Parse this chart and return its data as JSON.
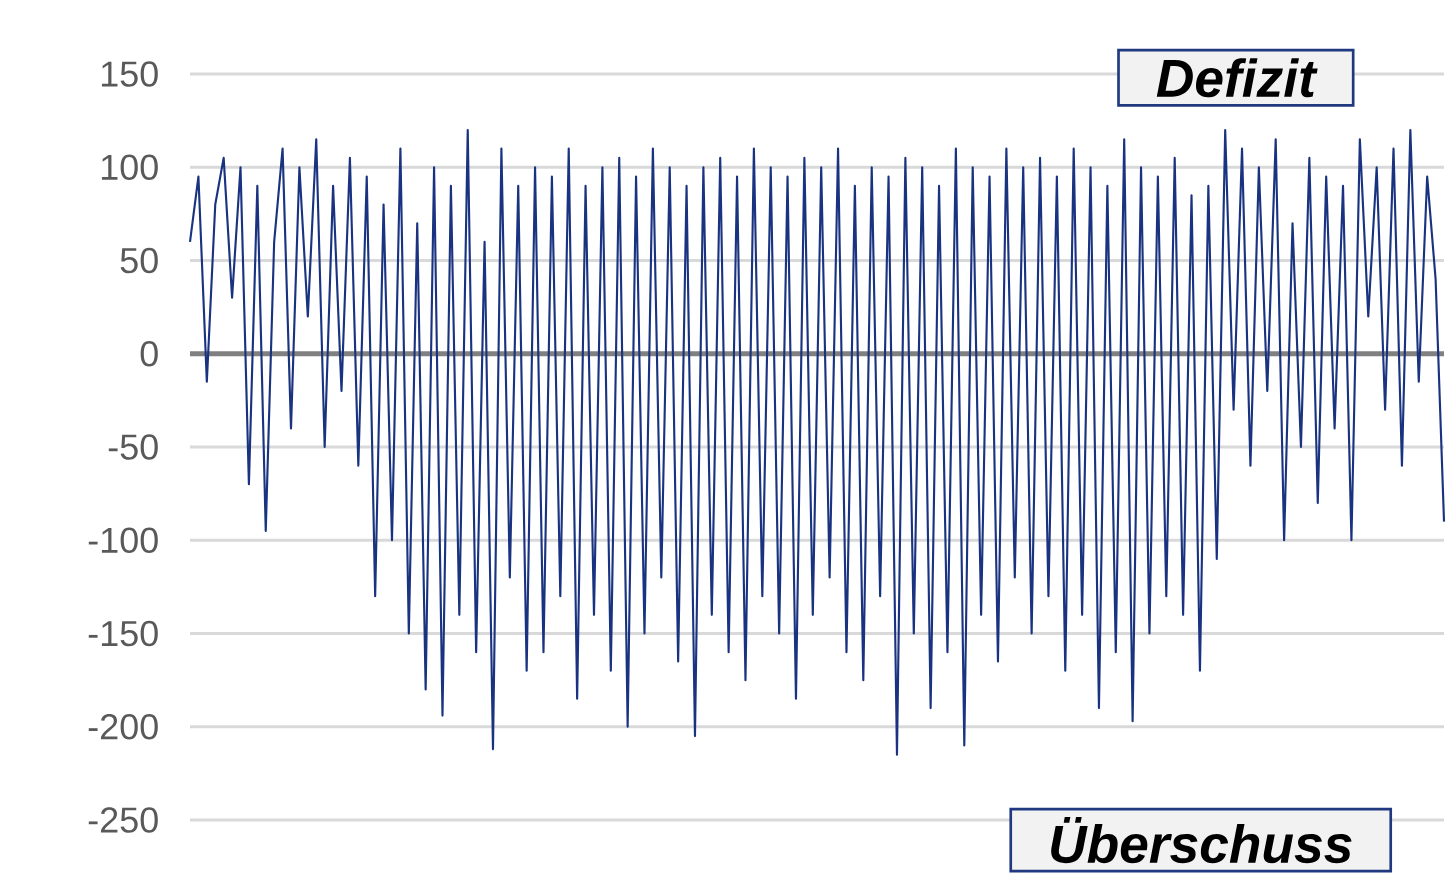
{
  "chart_data": {
    "type": "line",
    "categories": [
      null,
      null,
      null,
      null,
      null,
      null,
      null,
      null,
      null,
      null,
      null,
      null,
      null,
      null,
      null,
      null,
      null,
      null,
      null,
      null,
      null,
      null,
      null,
      null,
      null,
      null,
      null,
      null,
      null,
      null,
      null,
      null,
      null,
      null,
      null,
      null,
      null,
      null,
      null,
      null,
      null,
      null,
      null,
      null,
      null,
      null,
      null,
      null,
      null,
      null,
      null,
      null,
      null,
      null,
      null,
      null,
      null,
      null,
      null,
      null,
      null,
      null,
      null,
      null,
      null,
      null,
      null,
      null,
      null,
      null,
      null,
      null,
      null,
      null,
      null,
      null,
      null,
      null,
      null,
      null,
      null,
      null,
      null,
      null,
      null,
      null,
      null,
      null,
      null,
      null,
      null,
      null,
      null,
      null,
      null,
      null,
      null,
      null,
      null,
      null,
      null,
      null,
      null,
      null,
      null,
      null,
      null,
      null,
      null,
      null,
      null,
      null,
      null,
      null,
      null,
      null,
      null,
      null,
      null,
      null,
      null,
      null,
      null,
      null,
      null,
      null,
      null,
      null,
      null,
      null,
      null,
      null,
      null,
      null,
      null,
      null,
      null,
      null,
      null,
      null,
      null,
      null,
      null,
      null,
      null,
      null,
      null,
      null,
      null,
      null
    ],
    "series": [
      {
        "color": "#1a3380",
        "values": [
          60,
          95,
          -15,
          80,
          105,
          30,
          100,
          -70,
          90,
          -95,
          60,
          110,
          -40,
          100,
          20,
          115,
          -50,
          90,
          -20,
          105,
          -60,
          95,
          -130,
          80,
          -100,
          110,
          -150,
          70,
          -180,
          100,
          -194,
          90,
          -140,
          120,
          -160,
          60,
          -212,
          110,
          -120,
          90,
          -170,
          100,
          -160,
          95,
          -130,
          110,
          -185,
          90,
          -140,
          100,
          -170,
          105,
          -200,
          95,
          -150,
          110,
          -120,
          100,
          -165,
          90,
          -205,
          100,
          -140,
          105,
          -160,
          95,
          -175,
          110,
          -130,
          100,
          -150,
          95,
          -185,
          105,
          -140,
          100,
          -120,
          110,
          -160,
          90,
          -175,
          100,
          -130,
          95,
          -215,
          105,
          -150,
          100,
          -190,
          90,
          -160,
          110,
          -210,
          100,
          -140,
          95,
          -165,
          110,
          -120,
          100,
          -150,
          105,
          -130,
          95,
          -170,
          110,
          -140,
          100,
          -190,
          90,
          -160,
          115,
          -197,
          100,
          -150,
          95,
          -130,
          105,
          -140,
          85,
          -170,
          90,
          -110,
          120,
          -30,
          110,
          -60,
          100,
          -20,
          115,
          -100,
          70,
          -50,
          105,
          -80,
          95,
          -40,
          90,
          -100,
          115,
          20,
          100,
          -30,
          110,
          -60,
          120,
          -15,
          95,
          40,
          -90
        ]
      }
    ],
    "ylim": [
      -250,
      150
    ],
    "yticks": [
      -250,
      -200,
      -150,
      -100,
      -50,
      0,
      50,
      100,
      150
    ],
    "grid": "y",
    "ref_lines": [
      {
        "axis": "y",
        "value": 0,
        "color": "#808080"
      }
    ],
    "annotations": [
      "Defizit",
      "Überschuss"
    ]
  }
}
